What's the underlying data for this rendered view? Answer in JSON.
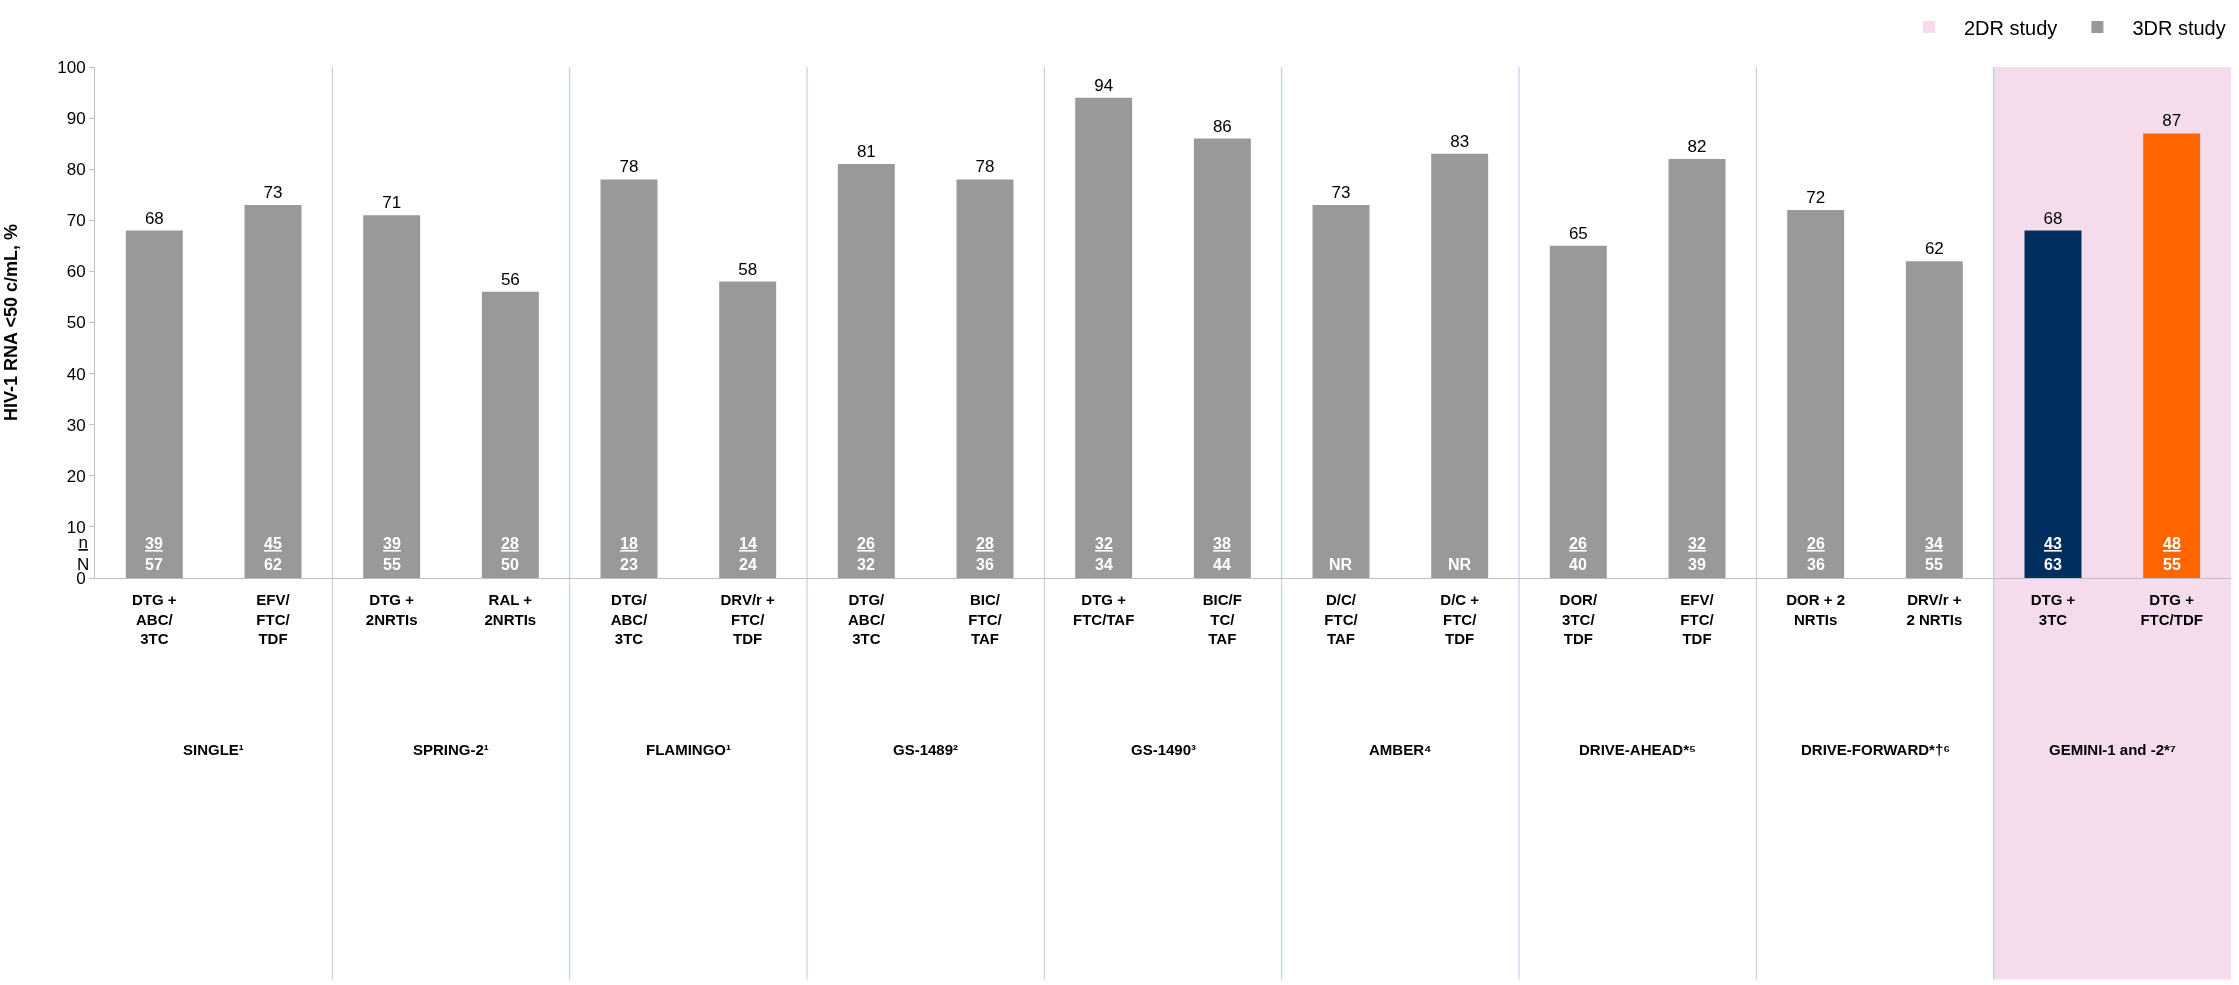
{
  "chart_data": {
    "type": "bar",
    "categories": [
      "DTG +\nABC/\n3TC",
      "EFV/\nFTC/\nTDF",
      "DTG +\n2NRTIs",
      "RAL +\n2NRTIs",
      "DTG/\nABC/\n3TC",
      "DRV/r +\nFTC/\nTDF",
      "DTG/\nABC/\n3TC",
      "BIC/\nFTC/\nTAF",
      "DTG +\nFTC/TAF",
      "BIC/F\nTC/\nTAF",
      "D/C/\nFTC/\nTAF",
      "D/C +\nFTC/\nTDF",
      "DOR/\n3TC/\nTDF",
      "EFV/\nFTC/\nTDF",
      "DOR + 2\nNRTIs",
      "DRV/r +\n2 NRTIs",
      "DTG +\n3TC",
      "DTG +\nFTC/TDF"
    ],
    "series": [
      {
        "name": "3DR study",
        "color": "#999999",
        "values": [
          68,
          73,
          71,
          56,
          78,
          58,
          81,
          78,
          94,
          86,
          73,
          83,
          65,
          82,
          72,
          62,
          null,
          null
        ]
      },
      {
        "colors": [
          "#999999",
          "#999999",
          "#999999",
          "#999999",
          "#999999",
          "#999999",
          "#999999",
          "#999999",
          "#999999",
          "#999999",
          "#999999",
          "#999999",
          "#999999",
          "#999999",
          "#999999",
          "#999999",
          "#002f5f",
          "#ff6600"
        ],
        "values": [
          null,
          null,
          null,
          null,
          null,
          null,
          null,
          null,
          null,
          null,
          null,
          null,
          null,
          null,
          null,
          null,
          68,
          87
        ]
      }
    ],
    "data_labels": true,
    "ylim": [
      0,
      100
    ],
    "yticks": [
      0,
      10,
      20,
      30,
      40,
      50,
      60,
      70,
      80,
      90,
      100
    ],
    "ylabel": "HIV-1 RNA <50 c/mL, %",
    "grid": false,
    "legend": "top right",
    "bands": [
      {
        "axis": "x",
        "from": "DTG +\n3TC",
        "to": "DTG +\nFTC/TDF",
        "label": "2DR study",
        "color": "#f4dcec"
      }
    ],
    "annotations": [
      "n\nN",
      "39\n57",
      "45\n62",
      "39\n55",
      "28\n50",
      "18\n23",
      "14\n24",
      "26\n32",
      "28\n36",
      "32\n34",
      "38\n44",
      "NR",
      "NR",
      "26\n40",
      "32\n39",
      "26\n36",
      "34\n55",
      "43\n63",
      "48\n55",
      "SINGLE¹",
      "SPRING-2¹",
      "FLAMINGO¹",
      "GS-1489²",
      "GS-1490³",
      "AMBER⁴",
      "DRIVE-AHEAD*⁵",
      "DRIVE-FORWARD*†⁶",
      "GEMINI-1 and -2*⁷"
    ]
  }
}
